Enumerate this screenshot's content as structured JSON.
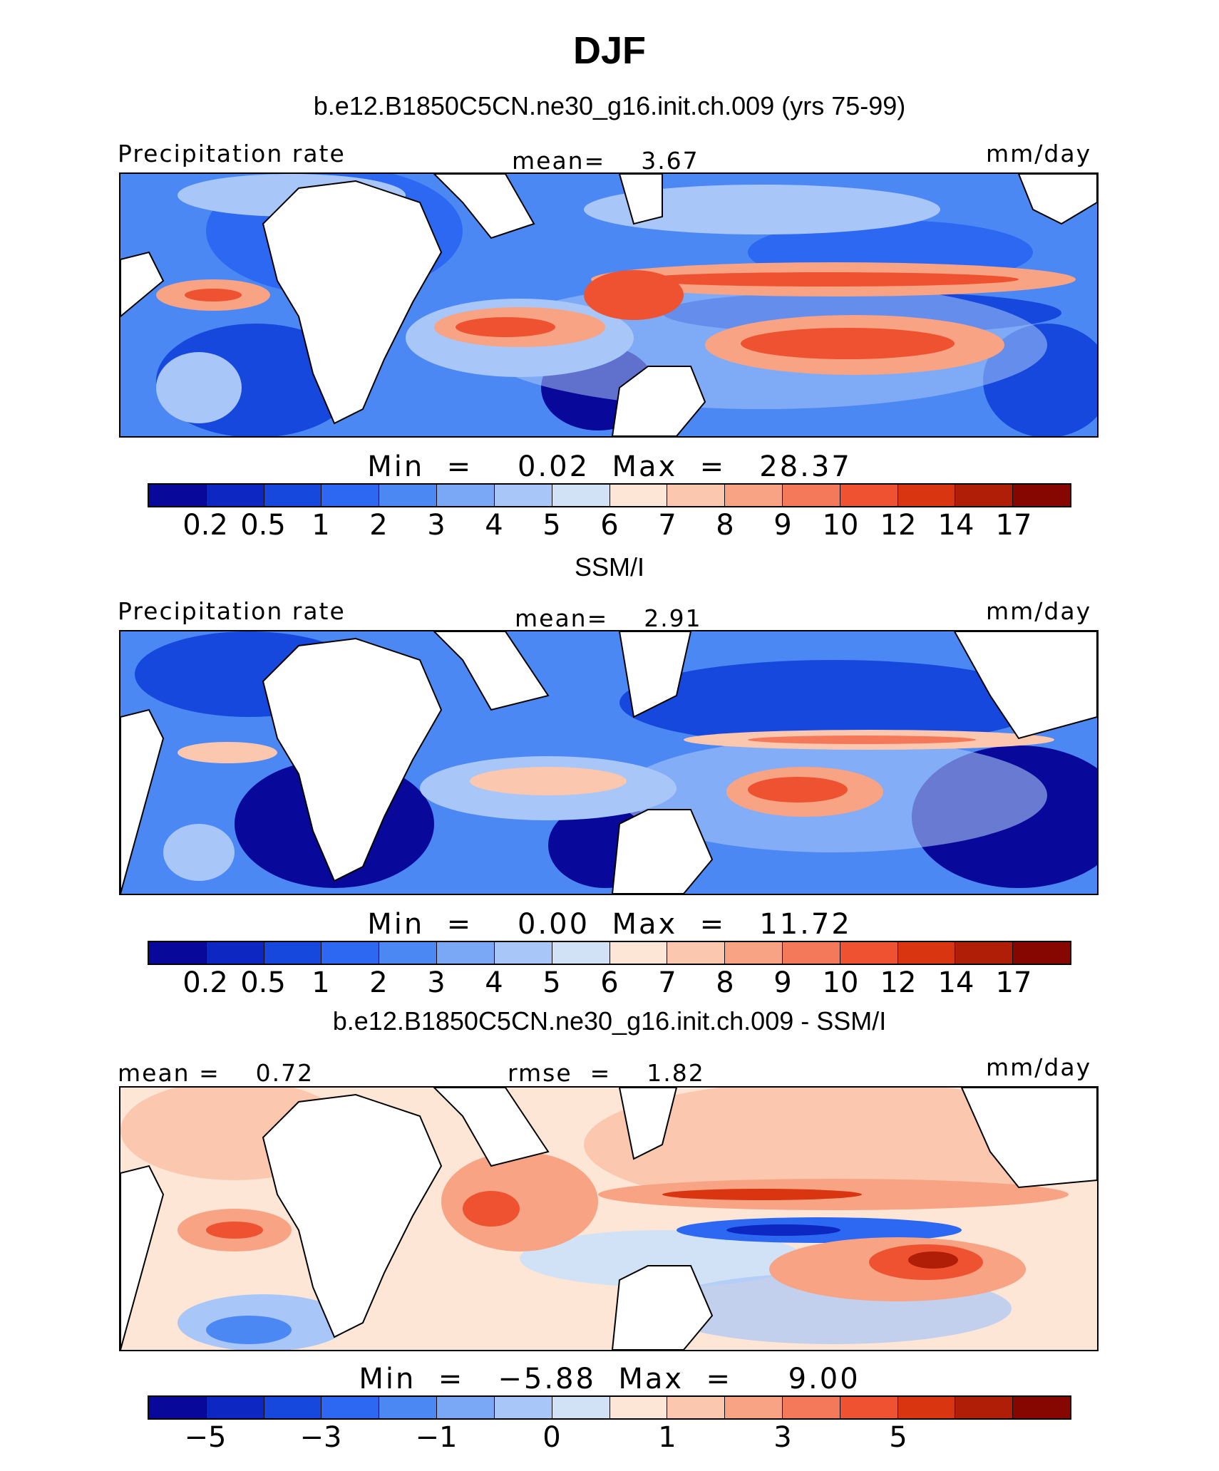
{
  "title": "DJF",
  "colors": {
    "levels": [
      "#08089a",
      "#0c27c2",
      "#1648de",
      "#2c68f2",
      "#4c88f4",
      "#7aa8f6",
      "#a8c6f8",
      "#d2e2f6",
      "#fde6d6",
      "#fbc7ae",
      "#f8a384",
      "#f4795a",
      "#ef5230",
      "#d83510",
      "#b01e08",
      "#860602"
    ],
    "land": "#ffffff",
    "coast": "#000000"
  },
  "icons": {
    "coastline": "coastline-outline"
  },
  "panels": [
    {
      "id": "model",
      "subtitle": "b.e12.B1850C5CN.ne30_g16.init.ch.009 (yrs 75-99)",
      "left_label": "Precipitation rate",
      "center_label": "mean=    3.67",
      "right_label": "mm/day",
      "minmax": "Min  =    0.02  Max  =   28.37",
      "ticks": [
        "0.2",
        "0.5",
        "1",
        "2",
        "3",
        "4",
        "5",
        "6",
        "7",
        "8",
        "9",
        "10",
        "12",
        "14",
        "17"
      ]
    },
    {
      "id": "obs",
      "subtitle": "SSM/I",
      "left_label": "Precipitation rate",
      "center_label": "mean=    2.91",
      "right_label": "mm/day",
      "minmax": "Min  =    0.00  Max  =   11.72",
      "ticks": [
        "0.2",
        "0.5",
        "1",
        "2",
        "3",
        "4",
        "5",
        "6",
        "7",
        "8",
        "9",
        "10",
        "12",
        "14",
        "17"
      ]
    },
    {
      "id": "diff",
      "subtitle": "b.e12.B1850C5CN.ne30_g16.init.ch.009 - SSM/I",
      "left_label": "mean =    0.72",
      "center_label": "rmse  =    1.82",
      "right_label": "mm/day",
      "minmax": "Min  =   −5.88  Max  =     9.00",
      "ticks": [
        "−5",
        "−3",
        "−1",
        "0",
        "1",
        "3",
        "5"
      ]
    }
  ]
}
